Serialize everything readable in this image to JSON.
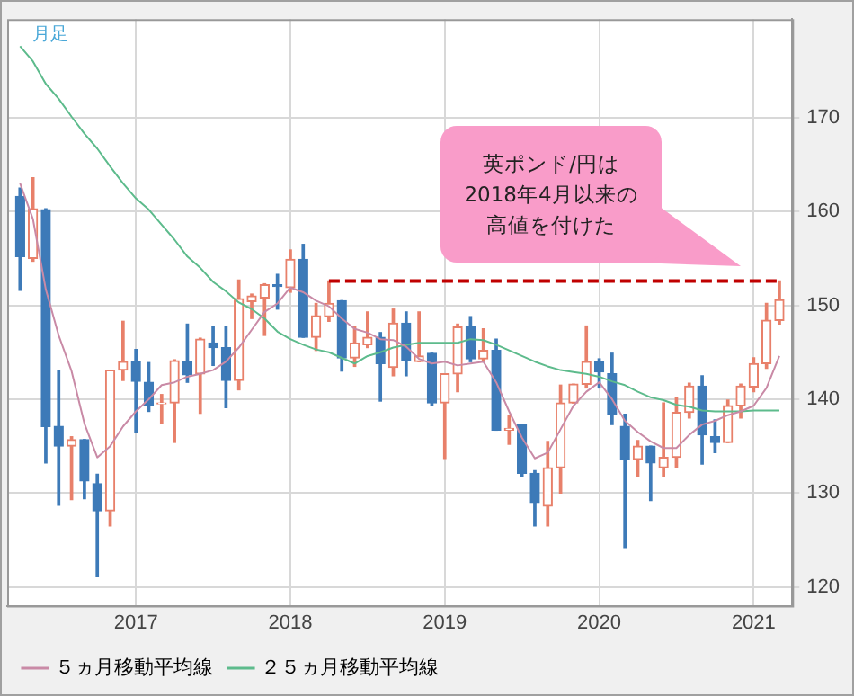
{
  "chart_data": {
    "type": "candlestick",
    "x": [
      "2016-04",
      "2016-05",
      "2016-06",
      "2016-07",
      "2016-08",
      "2016-09",
      "2016-10",
      "2016-11",
      "2016-12",
      "2017-01",
      "2017-02",
      "2017-03",
      "2017-04",
      "2017-05",
      "2017-06",
      "2017-07",
      "2017-08",
      "2017-09",
      "2017-10",
      "2017-11",
      "2017-12",
      "2018-01",
      "2018-02",
      "2018-03",
      "2018-04",
      "2018-05",
      "2018-06",
      "2018-07",
      "2018-08",
      "2018-09",
      "2018-10",
      "2018-11",
      "2018-12",
      "2019-01",
      "2019-02",
      "2019-03",
      "2019-04",
      "2019-05",
      "2019-06",
      "2019-07",
      "2019-08",
      "2019-09",
      "2019-10",
      "2019-11",
      "2019-12",
      "2020-01",
      "2020-02",
      "2020-03",
      "2020-04",
      "2020-05",
      "2020-06",
      "2020-07",
      "2020-08",
      "2020-09",
      "2020-10",
      "2020-11",
      "2020-12",
      "2021-01",
      "2021-02",
      "2021-03"
    ],
    "ohlc": [
      [
        161.6,
        162.5,
        151.6,
        155.2
      ],
      [
        155.0,
        163.6,
        154.7,
        160.3
      ],
      [
        160.2,
        160.3,
        133.2,
        137.1
      ],
      [
        137.1,
        143.1,
        128.7,
        135.0
      ],
      [
        135.0,
        136.0,
        129.3,
        135.7
      ],
      [
        135.7,
        135.7,
        129.4,
        131.3
      ],
      [
        131.0,
        132.0,
        121.1,
        128.1
      ],
      [
        128.1,
        143.1,
        126.5,
        143.1
      ],
      [
        143.1,
        148.3,
        142.0,
        144.0
      ],
      [
        144.0,
        145.3,
        136.5,
        141.9
      ],
      [
        141.8,
        143.9,
        138.7,
        139.4
      ],
      [
        139.5,
        140.5,
        137.4,
        139.6
      ],
      [
        139.6,
        144.2,
        135.4,
        144.1
      ],
      [
        144.0,
        148.0,
        141.8,
        142.6
      ],
      [
        142.7,
        146.5,
        138.5,
        146.4
      ],
      [
        146.0,
        147.7,
        143.6,
        145.5
      ],
      [
        145.5,
        147.7,
        139.1,
        142.0
      ],
      [
        142.0,
        152.7,
        141.0,
        150.7
      ],
      [
        150.4,
        151.2,
        148.6,
        151.0
      ],
      [
        150.8,
        152.3,
        146.8,
        152.2
      ],
      [
        152.2,
        153.3,
        149.6,
        152.0
      ],
      [
        151.9,
        155.9,
        151.4,
        154.9
      ],
      [
        154.9,
        156.5,
        146.6,
        146.6
      ],
      [
        146.6,
        150.2,
        145.2,
        148.9
      ],
      [
        148.8,
        152.6,
        148.3,
        150.2
      ],
      [
        150.5,
        150.5,
        143.0,
        144.4
      ],
      [
        144.4,
        147.7,
        143.5,
        146.0
      ],
      [
        145.8,
        149.3,
        145.5,
        146.6
      ],
      [
        146.6,
        147.1,
        139.8,
        143.8
      ],
      [
        143.4,
        149.6,
        142.5,
        148.1
      ],
      [
        148.1,
        149.3,
        142.5,
        144.1
      ],
      [
        144.0,
        149.3,
        144.0,
        144.6
      ],
      [
        144.9,
        144.9,
        139.3,
        139.6
      ],
      [
        139.6,
        142.7,
        133.7,
        142.7
      ],
      [
        142.7,
        148.0,
        140.8,
        147.7
      ],
      [
        147.7,
        148.8,
        144.0,
        144.3
      ],
      [
        144.3,
        147.5,
        144.0,
        145.2
      ],
      [
        145.2,
        146.4,
        136.7,
        136.7
      ],
      [
        136.7,
        138.3,
        135.2,
        136.9
      ],
      [
        137.3,
        137.3,
        131.8,
        132.1
      ],
      [
        132.1,
        132.4,
        126.5,
        129.0
      ],
      [
        128.6,
        135.5,
        126.5,
        132.7
      ],
      [
        132.7,
        141.5,
        130.0,
        139.6
      ],
      [
        139.6,
        141.6,
        139.6,
        141.6
      ],
      [
        141.6,
        147.8,
        141.2,
        144.0
      ],
      [
        144.0,
        144.3,
        141.2,
        142.9
      ],
      [
        142.7,
        144.9,
        137.3,
        138.4
      ],
      [
        137.1,
        138.4,
        124.2,
        133.6
      ],
      [
        133.6,
        135.6,
        131.8,
        135.0
      ],
      [
        135.0,
        135.0,
        129.2,
        133.2
      ],
      [
        132.7,
        139.6,
        131.8,
        133.8
      ],
      [
        133.8,
        140.2,
        132.7,
        138.6
      ],
      [
        138.6,
        141.7,
        138.0,
        141.4
      ],
      [
        141.4,
        142.5,
        133.1,
        136.2
      ],
      [
        136.0,
        137.8,
        134.3,
        135.4
      ],
      [
        135.4,
        139.9,
        135.4,
        139.3
      ],
      [
        139.3,
        141.6,
        138.0,
        141.4
      ],
      [
        141.3,
        144.4,
        140.8,
        143.8
      ],
      [
        143.8,
        150.2,
        143.3,
        148.4
      ],
      [
        148.4,
        152.6,
        148.0,
        150.6
      ]
    ],
    "colors": [
      "#3d7ab8",
      "#e8806a",
      "#3d7ab8",
      "#3d7ab8",
      "#e8806a",
      "#3d7ab8",
      "#3d7ab8",
      "#e8806a",
      "#e8806a",
      "#3d7ab8",
      "#3d7ab8",
      "#e8806a",
      "#e8806a",
      "#3d7ab8",
      "#e8806a",
      "#3d7ab8",
      "#3d7ab8",
      "#e8806a",
      "#e8806a",
      "#e8806a",
      "#3d7ab8",
      "#e8806a",
      "#3d7ab8",
      "#e8806a",
      "#e8806a",
      "#3d7ab8",
      "#e8806a",
      "#e8806a",
      "#3d7ab8",
      "#e8806a",
      "#3d7ab8",
      "#e8806a",
      "#3d7ab8",
      "#e8806a",
      "#e8806a",
      "#3d7ab8",
      "#e8806a",
      "#3d7ab8",
      "#e8806a",
      "#3d7ab8",
      "#3d7ab8",
      "#e8806a",
      "#e8806a",
      "#e8806a",
      "#e8806a",
      "#3d7ab8",
      "#3d7ab8",
      "#3d7ab8",
      "#e8806a",
      "#3d7ab8",
      "#e8806a",
      "#e8806a",
      "#e8806a",
      "#3d7ab8",
      "#3d7ab8",
      "#e8806a",
      "#e8806a",
      "#e8806a",
      "#e8806a",
      "#e8806a"
    ],
    "series": [
      {
        "type": "line",
        "name": "５ヵ月移動平均線",
        "color": "#c98aa6",
        "values": [
          163.0,
          159.2,
          151.7,
          146.8,
          143.0,
          137.4,
          133.8,
          135,
          137.1,
          138.7,
          140,
          141.5,
          141.8,
          142.4,
          142.7,
          143.1,
          144,
          145.5,
          147.4,
          149.3,
          150.2,
          151.9,
          151.4,
          150.5,
          149.9,
          148.6,
          147.5,
          147.1,
          146.4,
          146.3,
          145.6,
          144.3,
          143.8,
          144,
          143.6,
          143.8,
          144,
          141.8,
          138.7,
          135.9,
          133.7,
          134.3,
          136.8,
          139.3,
          140.8,
          141.8,
          140,
          137.7,
          136.5,
          135.5,
          134.8,
          134.8,
          136.2,
          137.3,
          137.7,
          138.3,
          138.7,
          139.3,
          141.2,
          144.6
        ]
      },
      {
        "type": "line",
        "name": "２５ヵ月移動平均線",
        "color": "#5dbb8c",
        "values": [
          177.6,
          176,
          173.6,
          172,
          170.1,
          168.3,
          166.7,
          164.8,
          163,
          161.4,
          160.2,
          158.6,
          157,
          155.2,
          154,
          152.5,
          151.5,
          150.3,
          149.6,
          148.6,
          147.2,
          146.4,
          145.8,
          145.3,
          145,
          144.4,
          143.8,
          144.6,
          145,
          145.5,
          145.8,
          146,
          146,
          146,
          146,
          146.4,
          146.3,
          145.8,
          145.2,
          144.6,
          144,
          143.5,
          143.1,
          142.9,
          142.7,
          142.4,
          141.9,
          141.5,
          140.8,
          140.2,
          139.9,
          139.4,
          139.2,
          138.8,
          138.7,
          138.7,
          138.7,
          138.8,
          138.8,
          138.8
        ]
      },
      {
        "type": "line",
        "color": "#c00000",
        "line_style": "dashed",
        "x": [
          "2018-04",
          "2021-03"
        ],
        "values": [
          152.6,
          152.6
        ]
      }
    ],
    "xlim": [
      "2016-03",
      "2021-04"
    ],
    "xticks": [
      "2017",
      "2018",
      "2019",
      "2020",
      "2021"
    ],
    "ylim": [
      118,
      180.5
    ],
    "yticks": [
      120,
      130,
      140,
      150,
      160,
      170
    ],
    "grid": true,
    "legend": "bottom",
    "marker": "none",
    "annotations": [
      "月足",
      "英ポンド/円は2018年4月以来の高値を付けた"
    ]
  }
}
